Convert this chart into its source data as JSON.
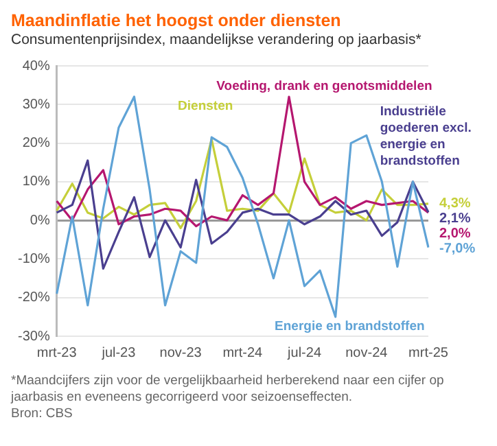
{
  "chart_data": {
    "type": "line",
    "title": "Maandinflatie het hoogst onder diensten",
    "subtitle": "Consumentenprijsindex, maandelijkse verandering op jaarbasis*",
    "categories": [
      "mrt-23",
      null,
      null,
      null,
      "jul-23",
      null,
      null,
      null,
      "nov-23",
      null,
      null,
      null,
      "mrt-24",
      null,
      null,
      null,
      "jul-24",
      null,
      null,
      null,
      "nov-24",
      null,
      null,
      null,
      "mrt-25"
    ],
    "series": [
      {
        "name": "Energie en brandstoffen",
        "color": "#5fa3d6",
        "values": [
          -19,
          1,
          -22,
          3,
          24,
          32,
          8,
          -22,
          -8,
          -11,
          21.5,
          19,
          11,
          -1,
          -15,
          0,
          -17,
          -13,
          -25,
          20,
          22,
          10,
          -12,
          10,
          -7.0
        ],
        "value_labels": [
          null,
          null,
          null,
          null,
          null,
          null,
          null,
          null,
          null,
          null,
          null,
          null,
          null,
          null,
          null,
          null,
          null,
          null,
          null,
          null,
          null,
          null,
          null,
          null,
          "-7,0%"
        ]
      },
      {
        "name": "Industriële goederen excl. energie en brandstoffen",
        "color": "#4a3f8f",
        "values": [
          2,
          4,
          15.5,
          -12.5,
          -3,
          6,
          -9.5,
          0,
          -7,
          10.5,
          -6,
          -3,
          2,
          3,
          1.5,
          1.5,
          -1,
          1,
          5,
          1.5,
          2.5,
          -4,
          -0.5,
          10,
          2.1
        ],
        "value_labels": [
          null,
          null,
          null,
          null,
          null,
          null,
          null,
          null,
          null,
          null,
          null,
          null,
          null,
          null,
          null,
          null,
          null,
          null,
          null,
          null,
          null,
          null,
          null,
          null,
          "2,1%"
        ]
      },
      {
        "name": "Voeding, drank en genotsmiddelen",
        "color": "#b5176f",
        "values": [
          5,
          0,
          8,
          13,
          -1,
          1,
          1.5,
          3,
          2.5,
          -1.5,
          1,
          0,
          6.5,
          4,
          7,
          32,
          10,
          4,
          6,
          3,
          5,
          4,
          4.5,
          5,
          2.0
        ],
        "value_labels": [
          null,
          null,
          null,
          null,
          null,
          null,
          null,
          null,
          null,
          null,
          null,
          null,
          null,
          null,
          null,
          null,
          null,
          null,
          null,
          null,
          null,
          null,
          null,
          null,
          "2,0%"
        ]
      },
      {
        "name": "Diensten",
        "color": "#c5cf3a",
        "values": [
          2.5,
          9.5,
          2,
          0.5,
          3.5,
          1.5,
          4,
          4.5,
          -2,
          5,
          21,
          2.5,
          3,
          2.5,
          7,
          2,
          16,
          4,
          2,
          2.5,
          0,
          8,
          4,
          4,
          4.3
        ],
        "value_labels": [
          null,
          null,
          null,
          null,
          null,
          null,
          null,
          null,
          null,
          null,
          null,
          null,
          null,
          null,
          null,
          null,
          null,
          null,
          null,
          null,
          null,
          null,
          null,
          null,
          "4,3%"
        ]
      }
    ],
    "ylim": [
      -30,
      40
    ],
    "yticks": [
      {
        "value": -30,
        "label": "-30%"
      },
      {
        "value": -20,
        "label": "-20%"
      },
      {
        "value": -10,
        "label": "-10%"
      },
      {
        "value": 0,
        "label": "0%"
      },
      {
        "value": 10,
        "label": "10%"
      },
      {
        "value": 20,
        "label": "20%"
      },
      {
        "value": 30,
        "label": "30%"
      },
      {
        "value": 40,
        "label": "40%"
      }
    ],
    "grid": "y",
    "marker": "none",
    "line_style": "solid",
    "annotations": [
      "*Maandcijfers zijn voor de vergelijkbaarheid herberekend naar een cijfer op jaarbasis en eveneens gecorrigeerd voor seizoenseffecten.",
      "Bron: CBS"
    ]
  }
}
